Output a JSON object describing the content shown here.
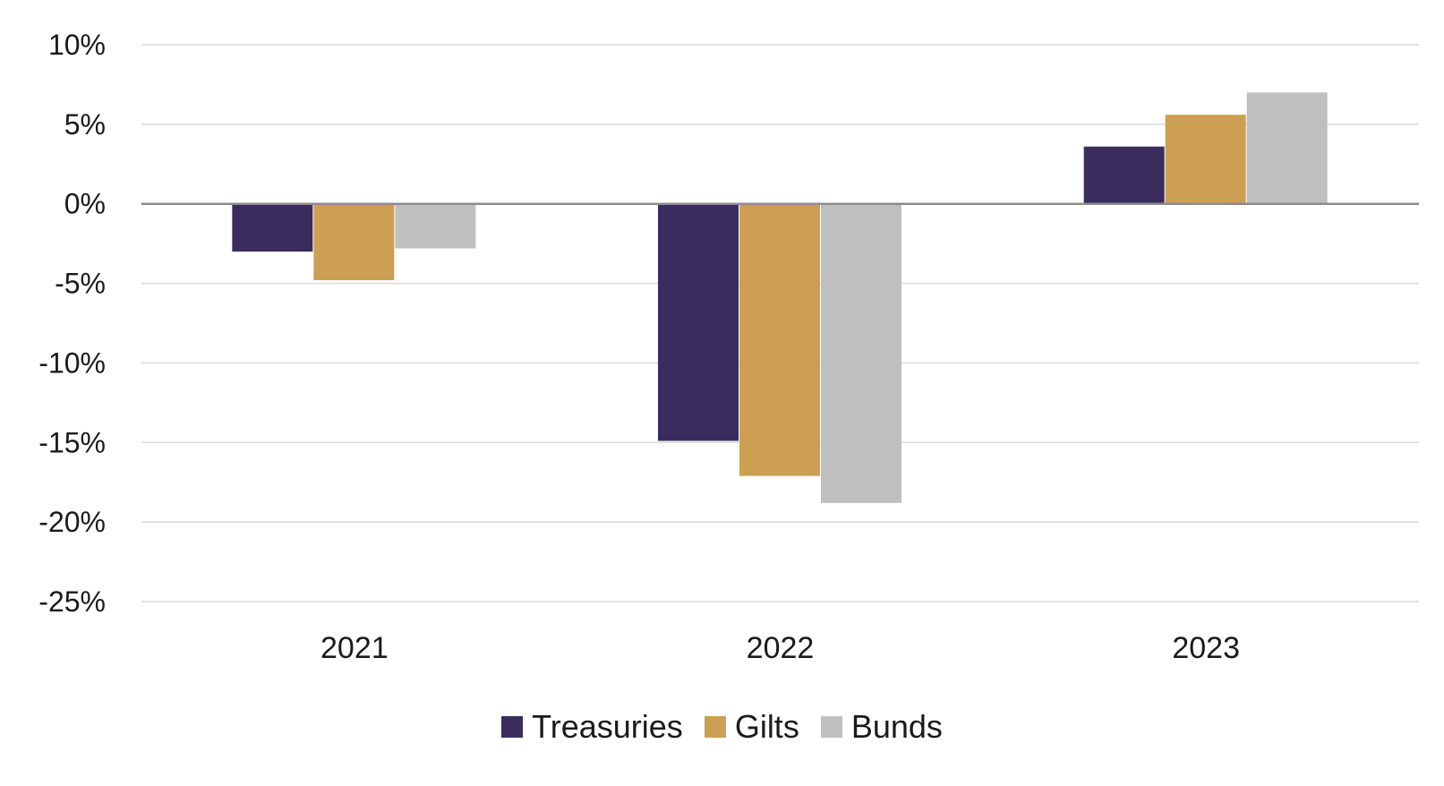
{
  "chart_data": {
    "type": "bar",
    "categories": [
      "2021",
      "2022",
      "2023"
    ],
    "series": [
      {
        "name": "Treasuries",
        "values": [
          -3.0,
          -14.9,
          3.6
        ],
        "color": "#3a2d5e"
      },
      {
        "name": "Gilts",
        "values": [
          -4.8,
          -17.1,
          5.6
        ],
        "color": "#cc9f52"
      },
      {
        "name": "Bunds",
        "values": [
          -2.8,
          -18.8,
          7.0
        ],
        "color": "#bfbfbf"
      }
    ],
    "yticks": [
      10,
      5,
      0,
      -5,
      -10,
      -15,
      -20,
      -25
    ],
    "ytick_labels": [
      "10%",
      "5%",
      "0%",
      "-5%",
      "-10%",
      "-15%",
      "-20%",
      "-25%"
    ],
    "ylim": [
      -25,
      10
    ],
    "grid": true,
    "legend_position": "bottom-center",
    "title": "",
    "xlabel": "",
    "ylabel": ""
  }
}
